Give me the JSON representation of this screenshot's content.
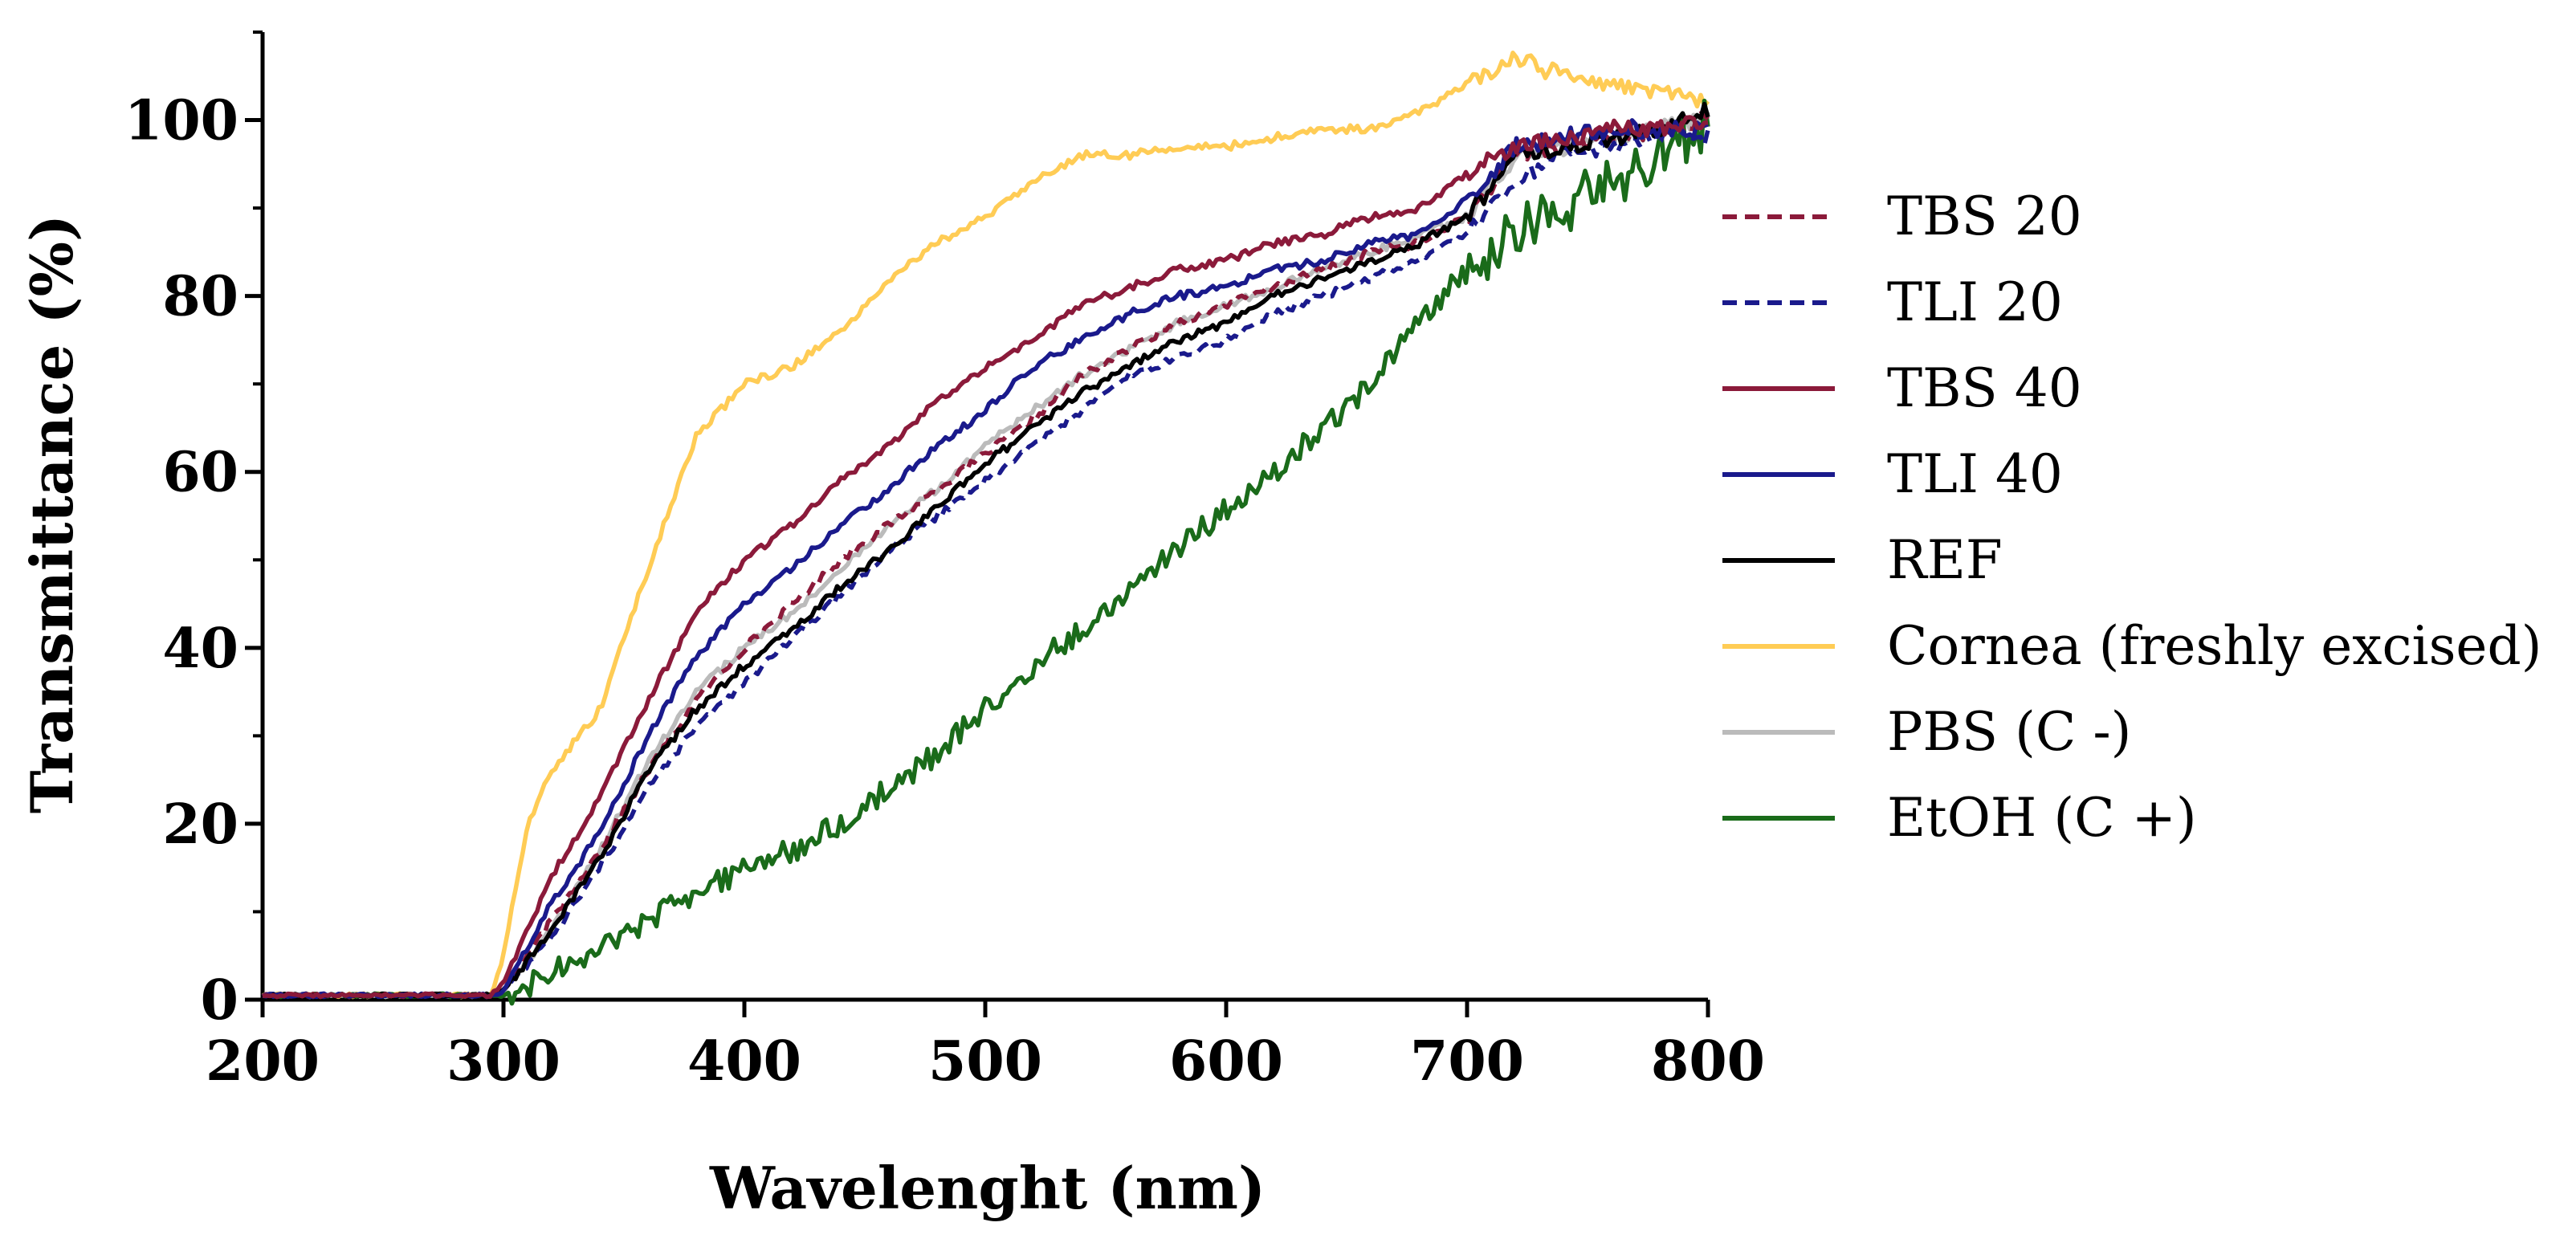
{
  "chart_data": {
    "type": "line",
    "title": "",
    "xlabel": "Wavelenght (nm)",
    "ylabel": "Transmittance (%)",
    "xlim": [
      200,
      800
    ],
    "ylim": [
      0,
      110
    ],
    "xticks": [
      200,
      300,
      400,
      500,
      600,
      700,
      800
    ],
    "yticks": [
      0,
      20,
      40,
      60,
      80,
      100
    ],
    "grid": false,
    "legend_position": "right",
    "series": [
      {
        "name": "TBS 20",
        "color": "#8b1a3a",
        "dash": "dashed",
        "points": [
          [
            200,
            0.5
          ],
          [
            295,
            0.5
          ],
          [
            300,
            1
          ],
          [
            320,
            9
          ],
          [
            340,
            17
          ],
          [
            360,
            26
          ],
          [
            380,
            34
          ],
          [
            400,
            40
          ],
          [
            420,
            45
          ],
          [
            440,
            50
          ],
          [
            460,
            54
          ],
          [
            480,
            58
          ],
          [
            500,
            62
          ],
          [
            520,
            66
          ],
          [
            540,
            71
          ],
          [
            560,
            74
          ],
          [
            580,
            77
          ],
          [
            600,
            79
          ],
          [
            620,
            81
          ],
          [
            640,
            83
          ],
          [
            660,
            85
          ],
          [
            680,
            86
          ],
          [
            700,
            89
          ],
          [
            720,
            96
          ],
          [
            740,
            97
          ],
          [
            760,
            98
          ],
          [
            780,
            99
          ],
          [
            800,
            100
          ]
        ]
      },
      {
        "name": "TLI 20",
        "color": "#1a1a8c",
        "dash": "dashed",
        "points": [
          [
            200,
            0.5
          ],
          [
            295,
            0.5
          ],
          [
            300,
            1
          ],
          [
            320,
            7
          ],
          [
            340,
            15
          ],
          [
            360,
            24
          ],
          [
            380,
            31
          ],
          [
            400,
            36
          ],
          [
            420,
            41
          ],
          [
            440,
            46
          ],
          [
            460,
            51
          ],
          [
            480,
            55
          ],
          [
            500,
            59
          ],
          [
            520,
            63
          ],
          [
            540,
            67
          ],
          [
            560,
            71
          ],
          [
            580,
            73
          ],
          [
            600,
            75
          ],
          [
            620,
            78
          ],
          [
            640,
            80
          ],
          [
            660,
            82
          ],
          [
            680,
            84
          ],
          [
            700,
            87
          ],
          [
            720,
            93
          ],
          [
            740,
            96
          ],
          [
            760,
            97
          ],
          [
            780,
            98
          ],
          [
            800,
            98
          ]
        ]
      },
      {
        "name": "TBS 40",
        "color": "#8b1a3a",
        "dash": "solid",
        "points": [
          [
            200,
            0.5
          ],
          [
            295,
            0.5
          ],
          [
            300,
            2
          ],
          [
            320,
            14
          ],
          [
            340,
            23
          ],
          [
            360,
            34
          ],
          [
            380,
            44
          ],
          [
            400,
            50
          ],
          [
            420,
            54
          ],
          [
            440,
            59
          ],
          [
            460,
            63
          ],
          [
            480,
            68
          ],
          [
            500,
            72
          ],
          [
            520,
            75
          ],
          [
            540,
            79
          ],
          [
            560,
            81
          ],
          [
            580,
            83
          ],
          [
            600,
            84
          ],
          [
            620,
            86
          ],
          [
            640,
            87
          ],
          [
            660,
            89
          ],
          [
            680,
            90
          ],
          [
            700,
            94
          ],
          [
            720,
            97
          ],
          [
            740,
            98
          ],
          [
            760,
            99
          ],
          [
            780,
            99
          ],
          [
            800,
            100
          ]
        ]
      },
      {
        "name": "TLI 40",
        "color": "#1a1a8c",
        "dash": "solid",
        "points": [
          [
            200,
            0.5
          ],
          [
            295,
            0.5
          ],
          [
            300,
            1
          ],
          [
            320,
            11
          ],
          [
            340,
            19
          ],
          [
            360,
            30
          ],
          [
            380,
            39
          ],
          [
            400,
            45
          ],
          [
            420,
            49
          ],
          [
            440,
            54
          ],
          [
            460,
            58
          ],
          [
            480,
            63
          ],
          [
            500,
            67
          ],
          [
            520,
            72
          ],
          [
            540,
            75
          ],
          [
            560,
            78
          ],
          [
            580,
            80
          ],
          [
            600,
            81
          ],
          [
            620,
            83
          ],
          [
            640,
            84
          ],
          [
            660,
            86
          ],
          [
            680,
            87
          ],
          [
            700,
            91
          ],
          [
            720,
            97
          ],
          [
            740,
            98
          ],
          [
            760,
            99
          ],
          [
            780,
            99
          ],
          [
            800,
            99
          ]
        ]
      },
      {
        "name": "REF",
        "color": "#000000",
        "dash": "solid",
        "points": [
          [
            200,
            0.5
          ],
          [
            295,
            0.5
          ],
          [
            300,
            1
          ],
          [
            320,
            8
          ],
          [
            340,
            16
          ],
          [
            360,
            26
          ],
          [
            380,
            33
          ],
          [
            400,
            38
          ],
          [
            420,
            42
          ],
          [
            440,
            47
          ],
          [
            460,
            51
          ],
          [
            480,
            56
          ],
          [
            500,
            61
          ],
          [
            520,
            65
          ],
          [
            540,
            69
          ],
          [
            560,
            72
          ],
          [
            580,
            75
          ],
          [
            600,
            77
          ],
          [
            620,
            80
          ],
          [
            640,
            82
          ],
          [
            660,
            84
          ],
          [
            680,
            86
          ],
          [
            700,
            89
          ],
          [
            720,
            96
          ],
          [
            740,
            97
          ],
          [
            760,
            98
          ],
          [
            780,
            99
          ],
          [
            800,
            101
          ]
        ]
      },
      {
        "name": "Cornea (freshly excised)",
        "color": "#ffcc55",
        "dash": "solid",
        "points": [
          [
            200,
            0.5
          ],
          [
            295,
            0.5
          ],
          [
            300,
            5
          ],
          [
            310,
            20
          ],
          [
            320,
            26
          ],
          [
            340,
            33
          ],
          [
            360,
            49
          ],
          [
            380,
            64
          ],
          [
            400,
            70
          ],
          [
            420,
            72
          ],
          [
            440,
            76
          ],
          [
            460,
            82
          ],
          [
            480,
            86
          ],
          [
            500,
            89
          ],
          [
            520,
            93
          ],
          [
            540,
            96
          ],
          [
            560,
            96
          ],
          [
            580,
            97
          ],
          [
            600,
            97
          ],
          [
            620,
            98
          ],
          [
            640,
            99
          ],
          [
            660,
            99
          ],
          [
            680,
            101
          ],
          [
            700,
            104
          ],
          [
            720,
            107
          ],
          [
            740,
            105
          ],
          [
            760,
            104
          ],
          [
            780,
            103
          ],
          [
            800,
            102
          ]
        ]
      },
      {
        "name": "PBS (C -)",
        "color": "#bbbbbb",
        "dash": "solid",
        "points": [
          [
            200,
            0.5
          ],
          [
            295,
            0.5
          ],
          [
            300,
            1
          ],
          [
            320,
            8
          ],
          [
            340,
            17
          ],
          [
            360,
            27
          ],
          [
            380,
            35
          ],
          [
            400,
            40
          ],
          [
            420,
            44
          ],
          [
            440,
            49
          ],
          [
            460,
            54
          ],
          [
            480,
            58
          ],
          [
            500,
            63
          ],
          [
            520,
            67
          ],
          [
            540,
            71
          ],
          [
            560,
            74
          ],
          [
            580,
            77
          ],
          [
            600,
            79
          ],
          [
            620,
            81
          ],
          [
            640,
            83
          ],
          [
            660,
            85
          ],
          [
            680,
            87
          ],
          [
            700,
            89
          ],
          [
            720,
            96
          ],
          [
            740,
            97
          ],
          [
            760,
            98
          ],
          [
            780,
            99
          ],
          [
            800,
            100
          ]
        ]
      },
      {
        "name": "EtOH (C +)",
        "color": "#1a6b1a",
        "dash": "solid",
        "points": [
          [
            200,
            0.5
          ],
          [
            295,
            0.5
          ],
          [
            300,
            0.5
          ],
          [
            320,
            3
          ],
          [
            340,
            6
          ],
          [
            360,
            9
          ],
          [
            380,
            12
          ],
          [
            400,
            15
          ],
          [
            420,
            17
          ],
          [
            440,
            20
          ],
          [
            460,
            24
          ],
          [
            480,
            28
          ],
          [
            500,
            33
          ],
          [
            520,
            38
          ],
          [
            540,
            42
          ],
          [
            560,
            47
          ],
          [
            580,
            51
          ],
          [
            600,
            56
          ],
          [
            620,
            60
          ],
          [
            640,
            65
          ],
          [
            660,
            70
          ],
          [
            680,
            77
          ],
          [
            700,
            83
          ],
          [
            720,
            87
          ],
          [
            740,
            90
          ],
          [
            760,
            93
          ],
          [
            780,
            96
          ],
          [
            800,
            100
          ]
        ]
      }
    ]
  }
}
